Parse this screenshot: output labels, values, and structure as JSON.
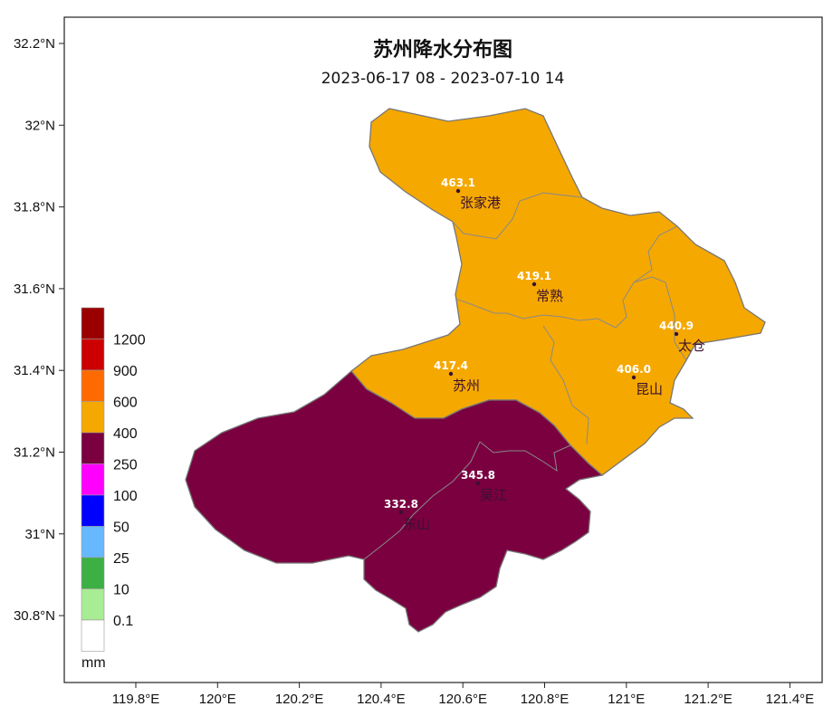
{
  "map": {
    "title": "苏州降水分布图",
    "subtitle": "2023-06-17 08 - 2023-07-10 14",
    "lon_ticks": [
      "119.8°E",
      "120°E",
      "120.2°E",
      "120.4°E",
      "120.6°E",
      "120.8°E",
      "121°E",
      "121.2°E",
      "121.4°E"
    ],
    "lat_ticks": [
      "32.2°N",
      "32°N",
      "31.8°N",
      "31.6°N",
      "31.4°N",
      "31.2°N",
      "31°N",
      "30.8°N"
    ]
  },
  "legend": {
    "unit": "mm",
    "labels": [
      "1200",
      "900",
      "600",
      "400",
      "250",
      "100",
      "50",
      "25",
      "10",
      "0.1"
    ],
    "colors": [
      "#9a0000",
      "#cc0000",
      "#ee1010",
      "#ff6a00",
      "#f5a800",
      "#7a0040",
      "#ff00ff",
      "#0000ff",
      "#66b8ff",
      "#3cb043",
      "#a8ec94",
      "#ffffff"
    ]
  },
  "stations": [
    {
      "name": "张家港",
      "value": "463.1"
    },
    {
      "name": "常熟",
      "value": "419.1"
    },
    {
      "name": "太仓",
      "value": "440.9"
    },
    {
      "name": "苏州",
      "value": "417.4"
    },
    {
      "name": "昆山",
      "value": "406.0"
    },
    {
      "name": "吴江",
      "value": "345.8"
    },
    {
      "name": "东山",
      "value": "332.8"
    }
  ],
  "regions": {
    "orange_color": "#f5a800",
    "maroon_color": "#7a0040"
  }
}
